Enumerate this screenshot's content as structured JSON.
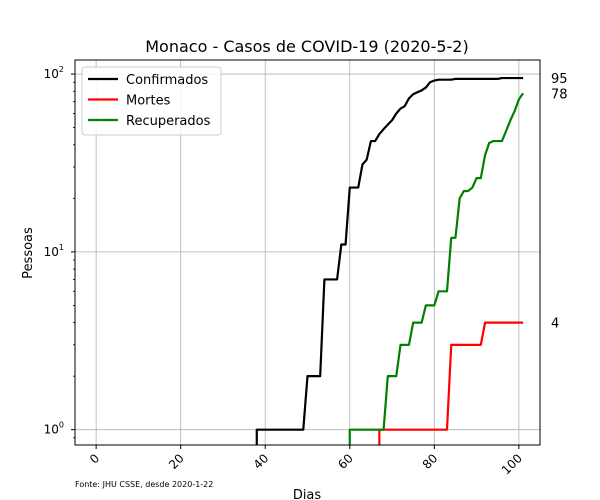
{
  "chart_data": {
    "type": "line",
    "title": "Monaco - Casos de COVID-19 (2020-5-2)",
    "xlabel": "Dias",
    "ylabel": "Pessoas",
    "source_note": "Fonte: JHU CSSE, desde 2020-1-22",
    "yscale": "log",
    "xlim": [
      -5,
      105
    ],
    "ylim": [
      0.82,
      120
    ],
    "x_ticks": [
      0,
      20,
      40,
      60,
      80,
      100
    ],
    "y_ticks": [
      {
        "value": 1,
        "base": "10",
        "exp": "0"
      },
      {
        "value": 10,
        "base": "10",
        "exp": "1"
      },
      {
        "value": 100,
        "base": "10",
        "exp": "2"
      }
    ],
    "grid": true,
    "legend_position": "top-left",
    "series": [
      {
        "name": "Confirmados",
        "color": "#000000",
        "end_label": "95",
        "points": [
          [
            38,
            0.5
          ],
          [
            38,
            1
          ],
          [
            49,
            1
          ],
          [
            50,
            2
          ],
          [
            53,
            2
          ],
          [
            54,
            7
          ],
          [
            57,
            7
          ],
          [
            58,
            11
          ],
          [
            59,
            11
          ],
          [
            60,
            23
          ],
          [
            62,
            23
          ],
          [
            63,
            31
          ],
          [
            64,
            33
          ],
          [
            65,
            42
          ],
          [
            66,
            42
          ],
          [
            67,
            46
          ],
          [
            68,
            49
          ],
          [
            69,
            52
          ],
          [
            70,
            55
          ],
          [
            71,
            60
          ],
          [
            72,
            64
          ],
          [
            73,
            66
          ],
          [
            74,
            73
          ],
          [
            75,
            77
          ],
          [
            76,
            79
          ],
          [
            77,
            81
          ],
          [
            78,
            84
          ],
          [
            79,
            90
          ],
          [
            80,
            92
          ],
          [
            81,
            93
          ],
          [
            82,
            93
          ],
          [
            83,
            93
          ],
          [
            84,
            93
          ],
          [
            85,
            94
          ],
          [
            86,
            94
          ],
          [
            87,
            94
          ],
          [
            88,
            94
          ],
          [
            89,
            94
          ],
          [
            90,
            94
          ],
          [
            91,
            94
          ],
          [
            92,
            94
          ],
          [
            93,
            94
          ],
          [
            94,
            94
          ],
          [
            95,
            94
          ],
          [
            96,
            95
          ],
          [
            101,
            95
          ]
        ]
      },
      {
        "name": "Mortes",
        "color": "#ff0000",
        "end_label": "4",
        "points": [
          [
            67,
            0.5
          ],
          [
            67,
            1
          ],
          [
            83,
            1
          ],
          [
            84,
            3
          ],
          [
            91,
            3
          ],
          [
            92,
            4
          ],
          [
            101,
            4
          ]
        ]
      },
      {
        "name": "Recuperados",
        "color": "#008000",
        "end_label": "78",
        "points": [
          [
            60,
            0.5
          ],
          [
            60,
            1
          ],
          [
            68,
            1
          ],
          [
            69,
            2
          ],
          [
            71,
            2
          ],
          [
            72,
            3
          ],
          [
            74,
            3
          ],
          [
            75,
            4
          ],
          [
            77,
            4
          ],
          [
            78,
            5
          ],
          [
            80,
            5
          ],
          [
            81,
            6
          ],
          [
            83,
            6
          ],
          [
            84,
            12
          ],
          [
            85,
            12
          ],
          [
            86,
            20
          ],
          [
            87,
            22
          ],
          [
            88,
            22
          ],
          [
            89,
            23
          ],
          [
            90,
            26
          ],
          [
            91,
            26
          ],
          [
            92,
            35
          ],
          [
            93,
            41
          ],
          [
            94,
            42
          ],
          [
            95,
            42
          ],
          [
            96,
            42
          ],
          [
            97,
            48
          ],
          [
            98,
            55
          ],
          [
            99,
            62
          ],
          [
            100,
            72
          ],
          [
            101,
            78
          ]
        ]
      }
    ]
  }
}
